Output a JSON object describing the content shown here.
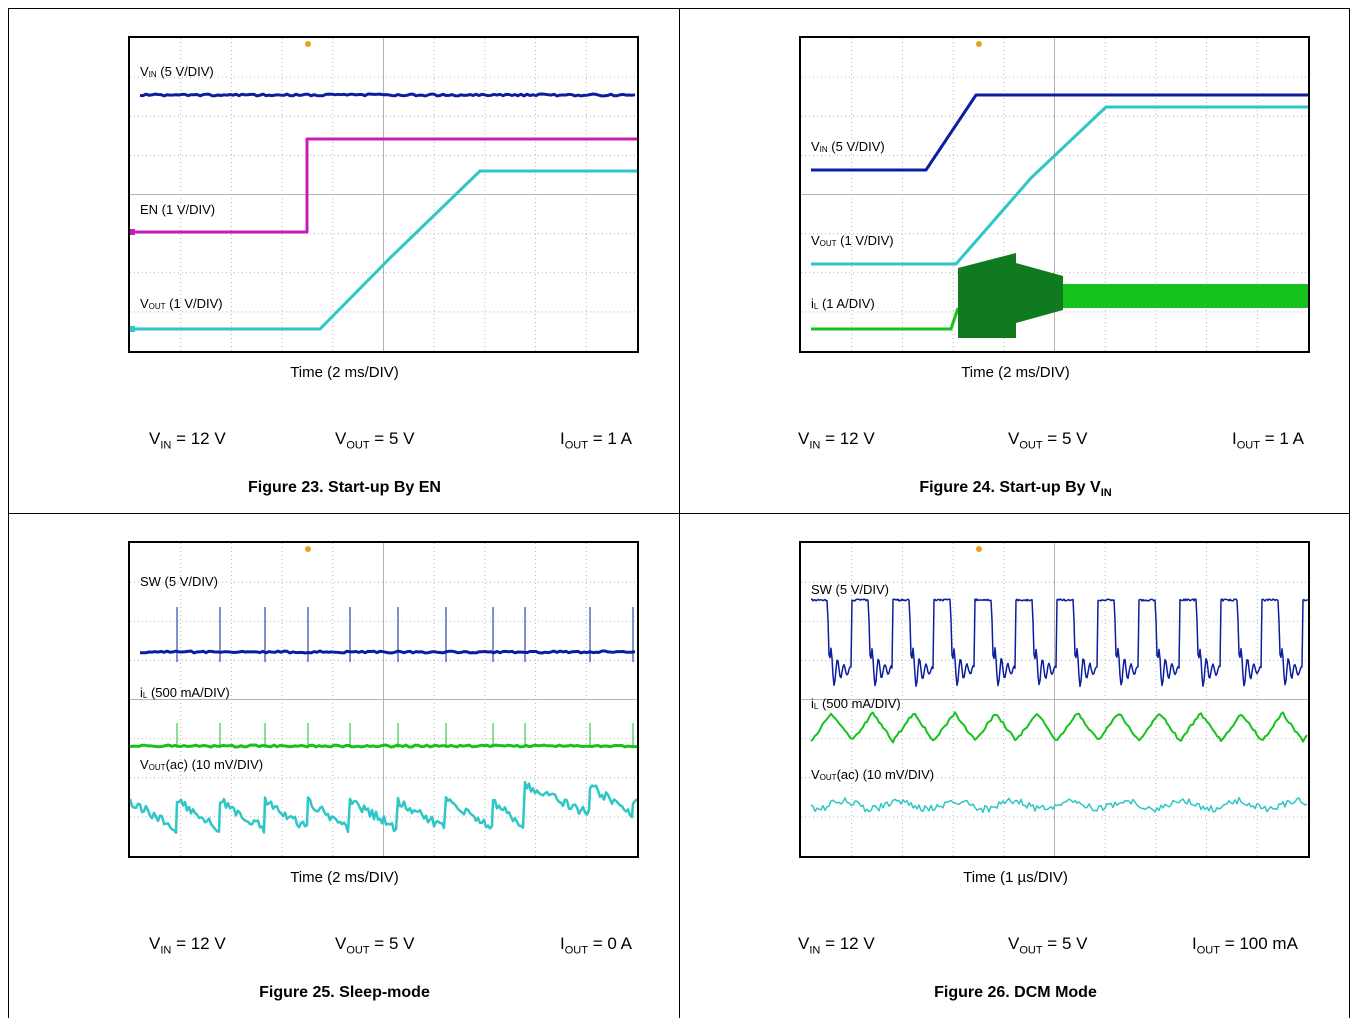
{
  "colors": {
    "ch1_blue": "#0b1f9e",
    "ch2_magenta": "#c81cb8",
    "ch3_cyan": "#2ec6c6",
    "ch4_green": "#16c21e",
    "dark_green": "#0f7a1f",
    "grid": "#b4b4b4",
    "border": "#000000"
  },
  "scope_grid": {
    "x_divisions": 10,
    "y_divisions": 8
  },
  "figures": [
    {
      "caption_main": "Figure 23. Start-up By EN",
      "caption_sub": "",
      "time_label": "Time (2 ms/DIV)",
      "cond_vin": "V",
      "cond_vin_sub": "IN",
      "cond_vin_val": " = 12 V",
      "cond_vout": "V",
      "cond_vout_sub": "OUT",
      "cond_vout_val": " = 5 V",
      "cond_iout": "I",
      "cond_iout_sub": "OUT",
      "cond_iout_val": " = 1 A",
      "labels": [
        {
          "main": "V",
          "sub": "IN",
          "rest": " (5 V/DIV)"
        },
        {
          "main": "EN (1 V/DIV)",
          "sub": "",
          "rest": ""
        },
        {
          "main": "V",
          "sub": "OUT",
          "rest": " (1 V/DIV)"
        }
      ]
    },
    {
      "caption_main": "Figure 24. Start-up By V",
      "caption_sub": "IN",
      "time_label": "Time (2 ms/DIV)",
      "cond_vin": "V",
      "cond_vin_sub": "IN",
      "cond_vin_val": " = 12 V",
      "cond_vout": "V",
      "cond_vout_sub": "OUT",
      "cond_vout_val": " = 5 V",
      "cond_iout": "I",
      "cond_iout_sub": "OUT",
      "cond_iout_val": " = 1 A",
      "labels": [
        {
          "main": "V",
          "sub": "IN",
          "rest": " (5 V/DIV)"
        },
        {
          "main": "V",
          "sub": "OUT",
          "rest": " (1 V/DIV)"
        },
        {
          "main": "i",
          "sub": "L",
          "rest": " (1 A/DIV)"
        }
      ]
    },
    {
      "caption_main": "Figure 25. Sleep-mode",
      "caption_sub": "",
      "time_label": "Time (2 ms/DIV)",
      "cond_vin": "V",
      "cond_vin_sub": "IN",
      "cond_vin_val": " = 12 V",
      "cond_vout": "V",
      "cond_vout_sub": "OUT",
      "cond_vout_val": " = 5 V",
      "cond_iout": "I",
      "cond_iout_sub": "OUT",
      "cond_iout_val": " = 0 A",
      "labels": [
        {
          "main": "SW (5 V/DIV)",
          "sub": "",
          "rest": ""
        },
        {
          "main": "i",
          "sub": "L",
          "rest": " (500 mA/DIV)"
        },
        {
          "main": "V",
          "sub": "OUT",
          "rest": "(ac) (10 mV/DIV)"
        }
      ]
    },
    {
      "caption_main": "Figure 26. DCM Mode",
      "caption_sub": "",
      "time_label": "Time (1 µs/DIV)",
      "cond_vin": "V",
      "cond_vin_sub": "IN",
      "cond_vin_val": " = 12 V",
      "cond_vout": "V",
      "cond_vout_sub": "OUT",
      "cond_vout_val": " = 5 V",
      "cond_iout": "I",
      "cond_iout_sub": "OUT",
      "cond_iout_val": " = 100 mA",
      "labels": [
        {
          "main": "SW (5 V/DIV)",
          "sub": "",
          "rest": ""
        },
        {
          "main": "i",
          "sub": "L",
          "rest": " (500 mA/DIV)"
        },
        {
          "main": "V",
          "sub": "OUT",
          "rest": "(ac) (10 mV/DIV)"
        }
      ]
    }
  ],
  "chart_data": [
    {
      "type": "line",
      "title": "Figure 23. Start-up By EN",
      "xlabel": "Time (2 ms/DIV)",
      "ylabel": "",
      "x_unit": "ms",
      "series": [
        {
          "name": "VIN (5 V/DIV)",
          "x": [
            0,
            20
          ],
          "y": [
            12,
            12
          ]
        },
        {
          "name": "EN (1 V/DIV)",
          "x": [
            0,
            6.8,
            6.8,
            20
          ],
          "y": [
            0,
            0,
            1.5,
            1.5
          ]
        },
        {
          "name": "VOUT (1 V/DIV)",
          "x": [
            0,
            7.5,
            13.5,
            20
          ],
          "y": [
            0,
            0,
            5,
            5
          ]
        }
      ]
    },
    {
      "type": "line",
      "title": "Figure 24. Start-up By VIN",
      "xlabel": "Time (2 ms/DIV)",
      "ylabel": "",
      "x_unit": "ms",
      "series": [
        {
          "name": "VIN (5 V/DIV)",
          "x": [
            0,
            4.5,
            7,
            20
          ],
          "y": [
            0,
            0,
            12,
            12
          ]
        },
        {
          "name": "VOUT (1 V/DIV)",
          "x": [
            0,
            6.3,
            11.5,
            20
          ],
          "y": [
            0,
            0,
            5,
            5
          ]
        },
        {
          "name": "iL (1 A/DIV)",
          "x": [
            0,
            6,
            6.5,
            10.5,
            20
          ],
          "y": [
            0,
            0,
            1.5,
            1,
            1
          ]
        }
      ]
    },
    {
      "type": "line",
      "title": "Figure 25. Sleep-mode",
      "xlabel": "Time (2 ms/DIV)",
      "ylabel": "",
      "x_unit": "ms",
      "series": [
        {
          "name": "SW (5 V/DIV)",
          "x": [
            1.6,
            3.3,
            5.1,
            6.9,
            8.6,
            10.6,
            12.5,
            14.3,
            15.6,
            18.1,
            19.8
          ],
          "y": [
            5,
            5,
            5,
            5,
            5,
            5,
            5,
            5,
            5,
            5,
            5
          ]
        },
        {
          "name": "iL (500 mA/DIV)",
          "x": [
            0,
            20
          ],
          "y": [
            0,
            0
          ]
        },
        {
          "name": "VOUT(ac) (10 mV/DIV)",
          "x": [
            0,
            20
          ],
          "y": [
            0,
            0
          ]
        }
      ]
    },
    {
      "type": "line",
      "title": "Figure 26. DCM Mode",
      "xlabel": "Time (1 µs/DIV)",
      "ylabel": "",
      "x_unit": "µs",
      "series": [
        {
          "name": "SW (5 V/DIV)",
          "x": [
            0,
            10
          ],
          "y": [
            12,
            12
          ]
        },
        {
          "name": "iL (500 mA/DIV)",
          "x": [
            0,
            10
          ],
          "y": [
            0,
            0
          ]
        },
        {
          "name": "VOUT(ac) (10 mV/DIV)",
          "x": [
            0,
            10
          ],
          "y": [
            0,
            0
          ]
        }
      ]
    }
  ]
}
